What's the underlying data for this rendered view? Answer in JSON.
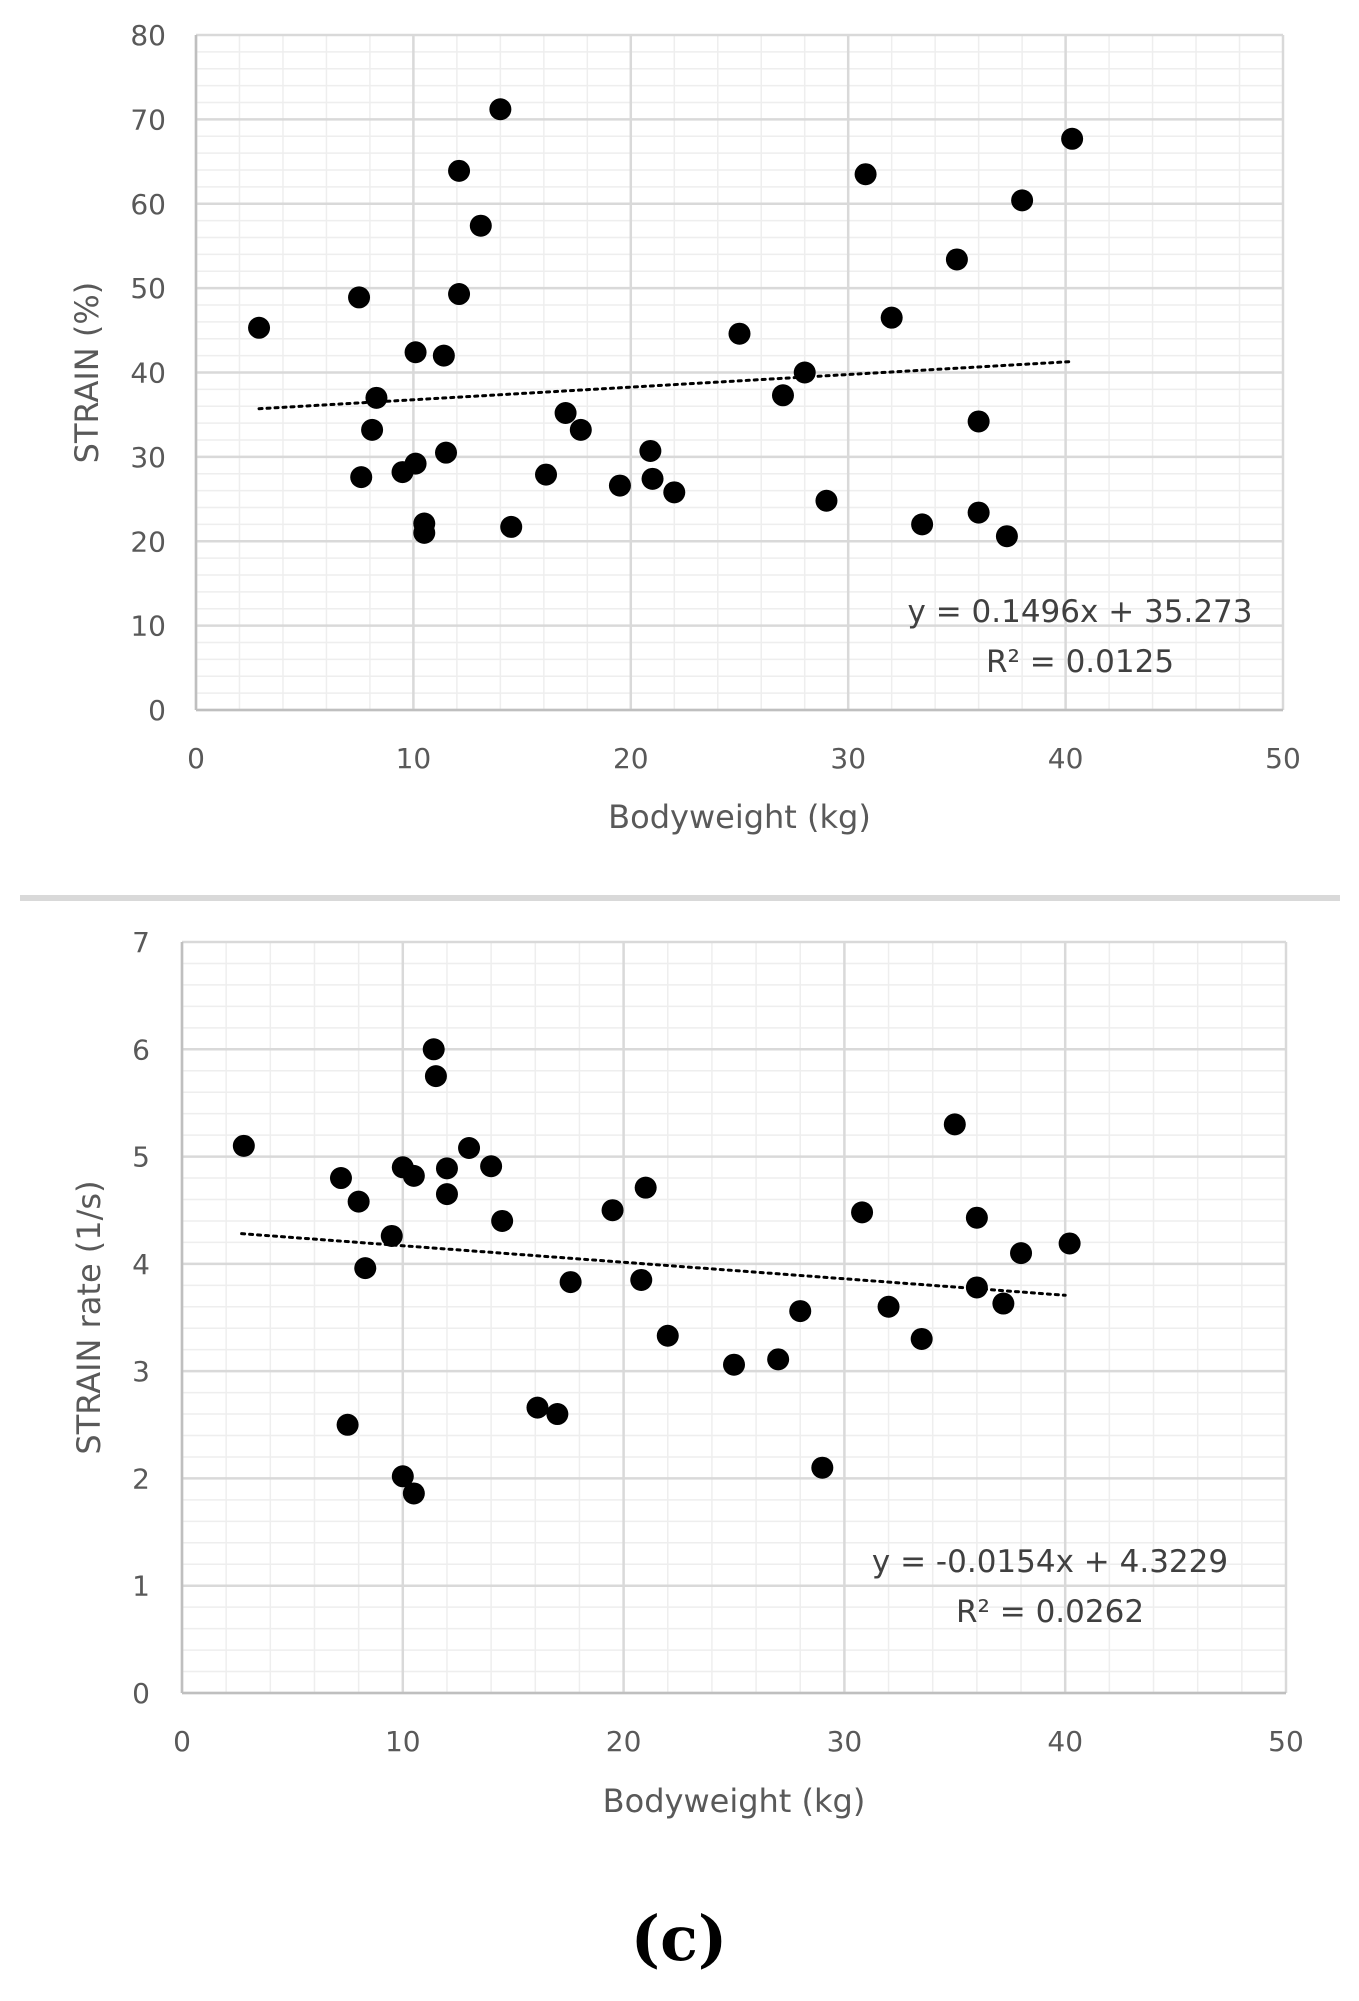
{
  "figure": {
    "panel_label": "(c)",
    "separator_color": "#d9d9d9",
    "marker_color": "#000000",
    "grid_color": "#d9d9d9",
    "minor_grid_color": "#eeeeee"
  },
  "chart_data": [
    {
      "type": "scatter",
      "xlabel": "Bodyweight (kg)",
      "ylabel": "STRAIN (%)",
      "xlim": [
        0,
        50
      ],
      "ylim": [
        0,
        80
      ],
      "x_ticks": [
        0,
        10,
        20,
        30,
        40,
        50
      ],
      "y_ticks": [
        0,
        10,
        20,
        30,
        40,
        50,
        60,
        70,
        80
      ],
      "grid": true,
      "trendline": {
        "style": "dotted",
        "slope": 0.1496,
        "intercept": 35.273,
        "x_range": [
          2.9,
          40.3
        ]
      },
      "equation": "y = 0.1496x + 35.273",
      "r_squared": "R² = 0.0125",
      "points": [
        [
          2.9,
          45.3
        ],
        [
          7.5,
          48.9
        ],
        [
          7.6,
          27.6
        ],
        [
          8.1,
          33.2
        ],
        [
          8.3,
          37.0
        ],
        [
          9.5,
          28.2
        ],
        [
          10.1,
          29.2
        ],
        [
          10.1,
          42.4
        ],
        [
          10.5,
          22.1
        ],
        [
          10.5,
          21.0
        ],
        [
          11.4,
          42.0
        ],
        [
          11.5,
          30.5
        ],
        [
          12.1,
          63.9
        ],
        [
          12.1,
          49.3
        ],
        [
          13.1,
          57.4
        ],
        [
          14.0,
          71.2
        ],
        [
          14.5,
          21.7
        ],
        [
          16.1,
          27.9
        ],
        [
          17.0,
          35.2
        ],
        [
          17.7,
          33.2
        ],
        [
          19.5,
          26.6
        ],
        [
          20.9,
          30.7
        ],
        [
          21.0,
          27.4
        ],
        [
          22.0,
          25.8
        ],
        [
          25.0,
          44.6
        ],
        [
          27.0,
          37.3
        ],
        [
          28.0,
          40.0
        ],
        [
          29.0,
          24.8
        ],
        [
          30.8,
          63.5
        ],
        [
          32.0,
          46.5
        ],
        [
          33.4,
          22.0
        ],
        [
          35.0,
          53.4
        ],
        [
          36.0,
          34.2
        ],
        [
          36.0,
          23.4
        ],
        [
          37.3,
          20.6
        ],
        [
          38.0,
          60.4
        ],
        [
          40.3,
          67.7
        ]
      ]
    },
    {
      "type": "scatter",
      "xlabel": "Bodyweight (kg)",
      "ylabel": "STRAIN rate (1/s)",
      "xlim": [
        0,
        50
      ],
      "ylim": [
        0,
        7
      ],
      "x_ticks": [
        0,
        10,
        20,
        30,
        40,
        50
      ],
      "y_ticks": [
        0,
        1,
        2,
        3,
        4,
        5,
        6,
        7
      ],
      "grid": true,
      "trendline": {
        "style": "dotted",
        "slope": -0.0154,
        "intercept": 4.3229,
        "x_range": [
          2.7,
          40.0
        ]
      },
      "equation": "y = -0.0154x + 4.3229",
      "r_squared": "R² = 0.0262",
      "points": [
        [
          2.8,
          5.1
        ],
        [
          7.2,
          4.8
        ],
        [
          7.5,
          2.5
        ],
        [
          8.0,
          4.58
        ],
        [
          8.3,
          3.96
        ],
        [
          9.5,
          4.26
        ],
        [
          10.0,
          4.9
        ],
        [
          10.0,
          2.02
        ],
        [
          10.5,
          4.82
        ],
        [
          10.5,
          1.86
        ],
        [
          11.4,
          6.0
        ],
        [
          11.5,
          5.75
        ],
        [
          12.0,
          4.89
        ],
        [
          12.0,
          4.65
        ],
        [
          13.0,
          5.08
        ],
        [
          14.0,
          4.91
        ],
        [
          14.5,
          4.4
        ],
        [
          16.1,
          2.66
        ],
        [
          17.0,
          2.6
        ],
        [
          17.6,
          3.83
        ],
        [
          19.5,
          4.5
        ],
        [
          20.8,
          3.85
        ],
        [
          21.0,
          4.71
        ],
        [
          22.0,
          3.33
        ],
        [
          25.0,
          3.06
        ],
        [
          27.0,
          3.11
        ],
        [
          28.0,
          3.56
        ],
        [
          29.0,
          2.1
        ],
        [
          30.8,
          4.48
        ],
        [
          32.0,
          3.6
        ],
        [
          33.5,
          3.3
        ],
        [
          35.0,
          5.3
        ],
        [
          36.0,
          4.43
        ],
        [
          36.0,
          3.78
        ],
        [
          37.2,
          3.63
        ],
        [
          38.0,
          4.1
        ],
        [
          40.2,
          4.19
        ]
      ]
    }
  ]
}
